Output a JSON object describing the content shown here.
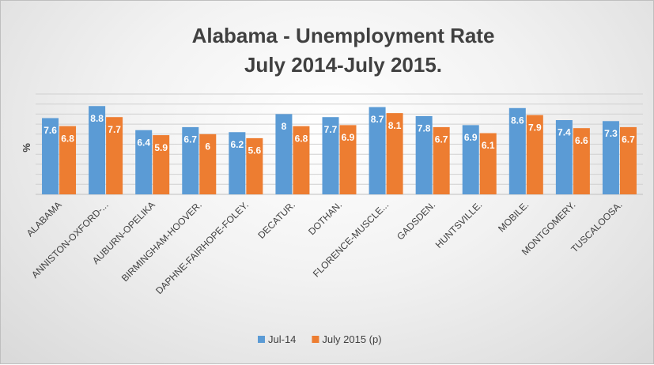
{
  "chart_data": {
    "type": "bar",
    "title": "Alabama - Unemployment Rate",
    "subtitle": "July 2014-July 2015.",
    "xlabel": "",
    "ylabel": "%",
    "ylim": [
      0,
      10
    ],
    "grid": true,
    "legend_position": "bottom",
    "categories": [
      "ALABAMA",
      "ANNISTON-OXFORD-...",
      "AUBURN-OPELIKA",
      "BIRMINGHAM-HOOVER.",
      "DAPHNE-FAIRHOPE-FOLEY.",
      "DECATUR.",
      "DOTHAN.",
      "FLORENCE-MUSCLE...",
      "GADSDEN.",
      "HUNTSVILLE.",
      "MOBILE.",
      "MONTGOMERY.",
      "TUSCALOOSA."
    ],
    "series": [
      {
        "name": "Jul-14",
        "color": "#5b9bd5",
        "values": [
          7.6,
          8.8,
          6.4,
          6.7,
          6.2,
          8,
          7.7,
          8.7,
          7.8,
          6.9,
          8.6,
          7.4,
          7.3
        ]
      },
      {
        "name": "July 2015 (p)",
        "color": "#ed7d31",
        "values": [
          6.8,
          7.7,
          5.9,
          6,
          5.6,
          6.8,
          6.9,
          8.1,
          6.7,
          6.1,
          7.9,
          6.6,
          6.7
        ]
      }
    ]
  }
}
